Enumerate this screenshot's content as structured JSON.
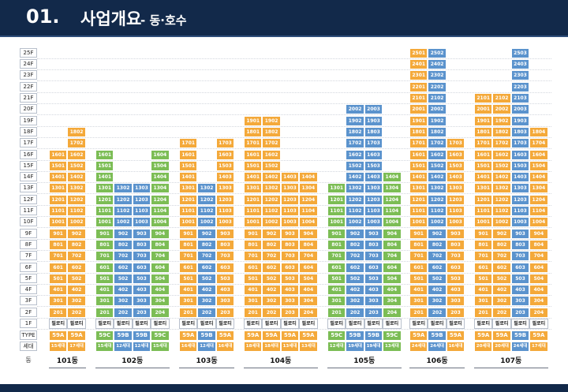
{
  "header": {
    "number": "01.",
    "title": "사업개요",
    "subtitle": "- 동·호수"
  },
  "floor_labels": [
    "25F",
    "24F",
    "23F",
    "22F",
    "21F",
    "20F",
    "19F",
    "18F",
    "17F",
    "16F",
    "15F",
    "14F",
    "13F",
    "12F",
    "11F",
    "10F",
    "9F",
    "8F",
    "7F",
    "6F",
    "5F",
    "4F",
    "3F",
    "2F",
    "1F"
  ],
  "row_labels": {
    "type": "TYPE",
    "households": "세대",
    "dong": "동"
  },
  "pilotis_label": "필로티",
  "colors": {
    "59A": "#f4a93a",
    "59B": "#5b93cd",
    "59C": "#7cbd55",
    "navy": "#12294a"
  },
  "buildings": [
    {
      "name": "101동",
      "units": [
        {
          "line": "01",
          "type": "59A",
          "top": 16,
          "households": "15세대"
        },
        {
          "line": "02",
          "type": "59A",
          "top": 18,
          "households": "17세대"
        }
      ]
    },
    {
      "name": "102동",
      "units": [
        {
          "line": "01",
          "type": "59C",
          "top": 16,
          "households": "15세대"
        },
        {
          "line": "02",
          "type": "59B",
          "top": 13,
          "households": "12세대"
        },
        {
          "line": "03",
          "type": "59B",
          "top": 13,
          "households": "12세대"
        },
        {
          "line": "04",
          "type": "59C",
          "top": 16,
          "households": "15세대"
        }
      ]
    },
    {
      "name": "103동",
      "units": [
        {
          "line": "01",
          "type": "59A",
          "top": 17,
          "households": "16세대"
        },
        {
          "line": "02",
          "type": "59B",
          "top": 13,
          "households": "12세대"
        },
        {
          "line": "03",
          "type": "59A",
          "top": 17,
          "households": "16세대"
        }
      ]
    },
    {
      "name": "104동",
      "units": [
        {
          "line": "01",
          "type": "59A",
          "top": 19,
          "households": "18세대"
        },
        {
          "line": "02",
          "type": "59A",
          "top": 19,
          "households": "18세대"
        },
        {
          "line": "03",
          "type": "59A",
          "top": 14,
          "households": "13세대"
        },
        {
          "line": "04",
          "type": "59A",
          "top": 14,
          "households": "13세대"
        }
      ]
    },
    {
      "name": "105동",
      "units": [
        {
          "line": "01",
          "type": "59C",
          "top": 13,
          "households": "12세대"
        },
        {
          "line": "02",
          "type": "59B",
          "top": 20,
          "households": "19세대"
        },
        {
          "line": "03",
          "type": "59B",
          "top": 20,
          "households": "19세대"
        },
        {
          "line": "04",
          "type": "59C",
          "top": 14,
          "households": "13세대"
        }
      ]
    },
    {
      "name": "106동",
      "units": [
        {
          "line": "01",
          "type": "59A",
          "top": 25,
          "households": "24세대"
        },
        {
          "line": "02",
          "type": "59B",
          "top": 25,
          "households": "24세대"
        },
        {
          "line": "03",
          "type": "59A",
          "top": 17,
          "households": "16세대"
        }
      ]
    },
    {
      "name": "107동",
      "units": [
        {
          "line": "01",
          "type": "59A",
          "top": 21,
          "households": "20세대"
        },
        {
          "line": "02",
          "type": "59A",
          "top": 21,
          "households": "20세대"
        },
        {
          "line": "03",
          "type": "59B",
          "top": 25,
          "households": "24세대"
        },
        {
          "line": "04",
          "type": "59A",
          "top": 18,
          "households": "17세대"
        }
      ]
    }
  ]
}
